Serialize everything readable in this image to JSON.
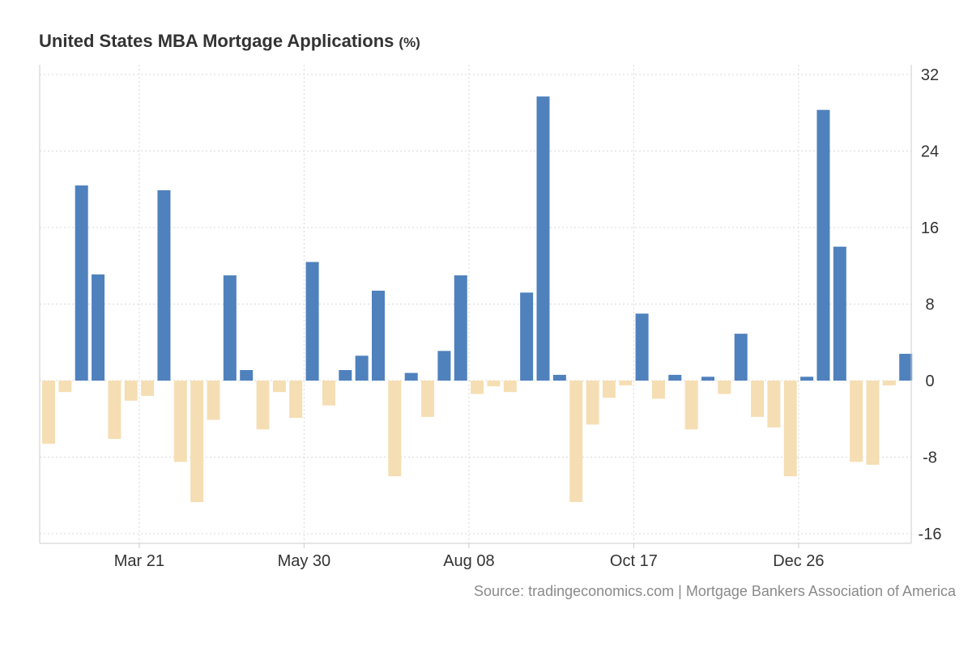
{
  "title": "United States MBA Mortgage Applications",
  "title_unit": "(%)",
  "source": "Source: tradingeconomics.com | Mortgage Bankers Association of America",
  "colors": {
    "positive": "#4f81bd",
    "negative": "#f5deb3",
    "grid": "#d9d9d9",
    "axis": "#cccccc",
    "tick_text": "#333333"
  },
  "chart_data": {
    "type": "bar",
    "title": "United States MBA Mortgage Applications (%)",
    "xlabel": "",
    "ylabel": "",
    "ylim": [
      -16,
      32
    ],
    "yticks": [
      -16,
      -8,
      0,
      8,
      16,
      24,
      32
    ],
    "x_tick_labels": [
      {
        "label": "Mar 21",
        "index": 5.4
      },
      {
        "label": "May 30",
        "index": 15.4
      },
      {
        "label": "Aug 08",
        "index": 25.4
      },
      {
        "label": "Oct 17",
        "index": 35.4
      },
      {
        "label": "Dec 26",
        "index": 45.4
      }
    ],
    "values": [
      -6.6,
      -1.2,
      20.4,
      11.1,
      -6.1,
      -2.1,
      -1.6,
      19.9,
      -8.5,
      -12.7,
      -4.1,
      11.0,
      1.1,
      -5.1,
      -1.2,
      -3.9,
      12.4,
      -2.6,
      1.1,
      2.6,
      9.4,
      -10.0,
      0.8,
      -3.8,
      3.1,
      11.0,
      -1.4,
      -0.6,
      -1.2,
      9.2,
      29.7,
      0.6,
      -12.7,
      -4.6,
      -1.8,
      -0.5,
      7.0,
      -1.9,
      0.6,
      -5.1,
      0.4,
      -1.4,
      4.9,
      -3.8,
      -4.9,
      -10.0,
      0.4,
      28.3,
      14.0,
      -8.5,
      -8.8,
      -0.5,
      2.8
    ]
  }
}
